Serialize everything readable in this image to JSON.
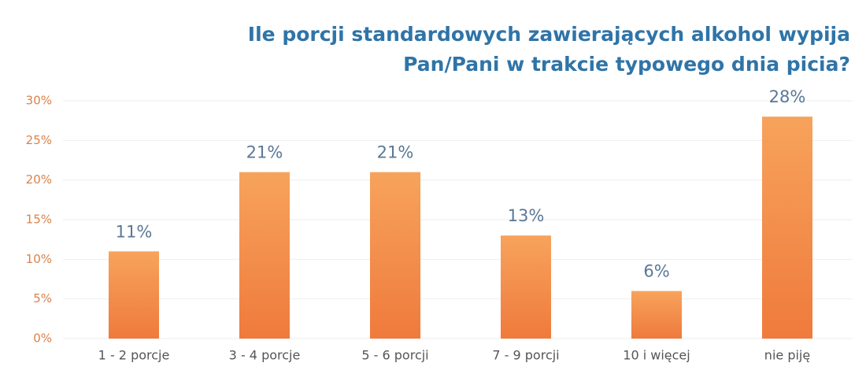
{
  "chart_data": {
    "type": "bar",
    "title": [
      "Ile porcji standardowych zawierających alkohol wypija",
      "Pan/Pani  w trakcie typowego dnia picia?"
    ],
    "categories": [
      "1 - 2 porcje",
      "3 - 4 porcje",
      "5 - 6 porcji",
      "7 - 9 porcji",
      "10 i więcej",
      "nie piję"
    ],
    "values": [
      11,
      21,
      21,
      13,
      6,
      28
    ],
    "value_labels": [
      "11%",
      "21%",
      "21%",
      "13%",
      "6%",
      "28%"
    ],
    "color": "#f28a45",
    "ylim": [
      0,
      30
    ],
    "yticks": [
      {
        "value": 0,
        "label": "0%"
      },
      {
        "value": 5,
        "label": "5%"
      },
      {
        "value": 10,
        "label": "10%"
      },
      {
        "value": 15,
        "label": "15%"
      },
      {
        "value": 20,
        "label": "20%"
      },
      {
        "value": 25,
        "label": "25%"
      },
      {
        "value": 30,
        "label": "30%"
      }
    ],
    "grid": true
  }
}
